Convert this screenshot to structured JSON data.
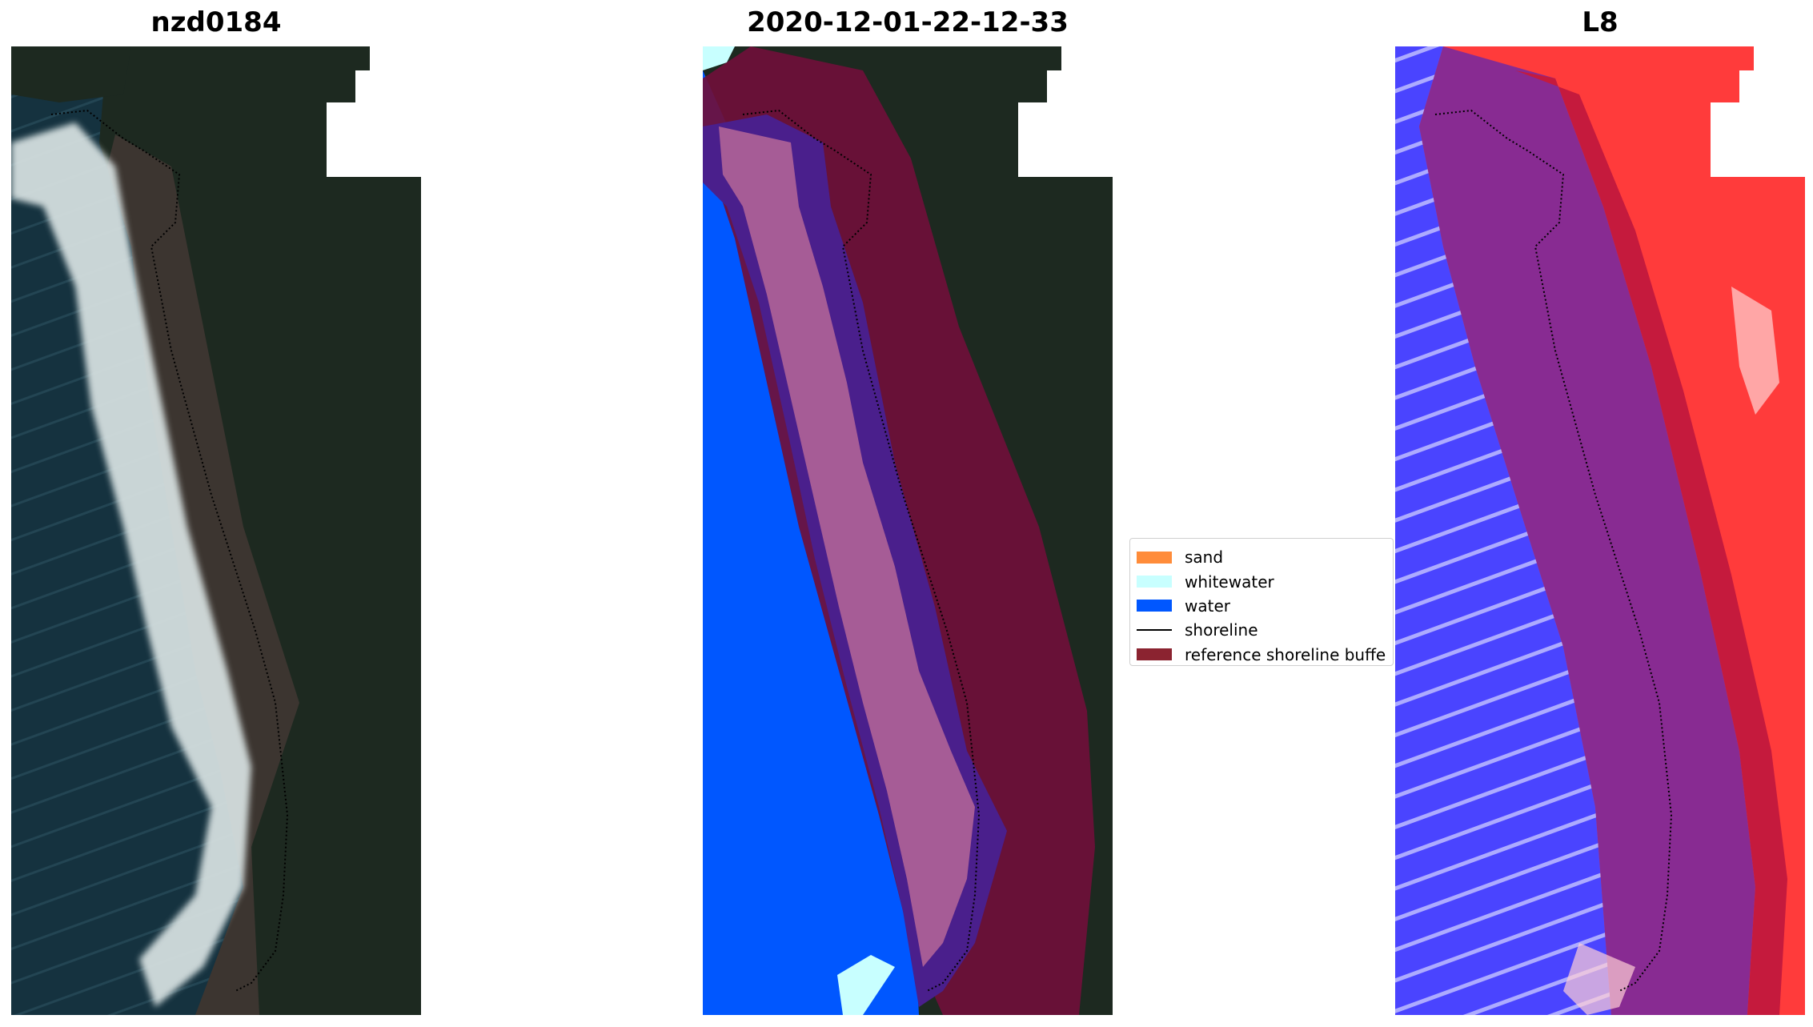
{
  "panels": [
    {
      "title": "nzd0184"
    },
    {
      "title": "2020-12-01-22-12-33"
    },
    {
      "title": "L8"
    }
  ],
  "legend": {
    "items": [
      {
        "label": "sand",
        "color": "#ff8c3a",
        "kind": "patch"
      },
      {
        "label": "whitewater",
        "color": "#c8ffff",
        "kind": "patch"
      },
      {
        "label": "water",
        "color": "#0057ff",
        "kind": "patch"
      },
      {
        "label": "shoreline",
        "color": "#000000",
        "kind": "line"
      },
      {
        "label": "reference shoreline buffe",
        "color": "#8b2330",
        "kind": "patch"
      }
    ]
  },
  "colors": {
    "ocean": "#15323f",
    "whitewash": "#d9e3e3",
    "beach": "#3c3530",
    "forest": "#1d2920",
    "water_class": "#0057ff",
    "buffer": "#6f0f3a",
    "sand_overlay": "#a65c96",
    "shore_zone": "#4a1f8c",
    "index_blue": "#3b33ff",
    "index_red": "#e8102a"
  }
}
